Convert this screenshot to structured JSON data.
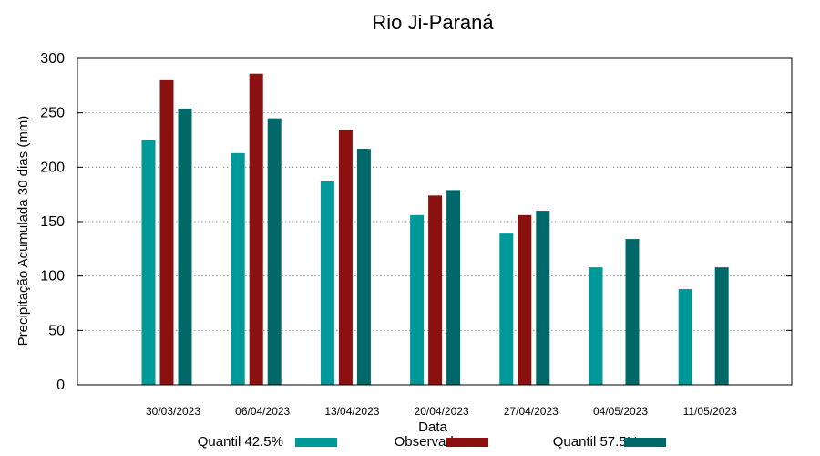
{
  "chart_data": {
    "type": "bar",
    "title": "Rio Ji-Paraná",
    "xlabel": "Data",
    "ylabel": "Precipitação Acumulada 30 dias (mm)",
    "ylim": [
      0,
      300
    ],
    "yticks": [
      0,
      50,
      100,
      150,
      200,
      250,
      300
    ],
    "grid": "horizontal dotted",
    "legend_position": "bottom",
    "categories": [
      "30/03/2023",
      "06/04/2023",
      "13/04/2023",
      "20/04/2023",
      "27/04/2023",
      "04/05/2023",
      "11/05/2023"
    ],
    "series": [
      {
        "name": "Quantil 42.5%",
        "color": "#009999",
        "values": [
          225,
          213,
          187,
          156,
          139,
          108,
          88
        ]
      },
      {
        "name": "Observado",
        "color": "#8b1010",
        "values": [
          280,
          286,
          234,
          174,
          156,
          null,
          null
        ]
      },
      {
        "name": "Quantil 57.5%",
        "color": "#006868",
        "values": [
          254,
          245,
          217,
          179,
          160,
          134,
          108
        ]
      }
    ]
  }
}
